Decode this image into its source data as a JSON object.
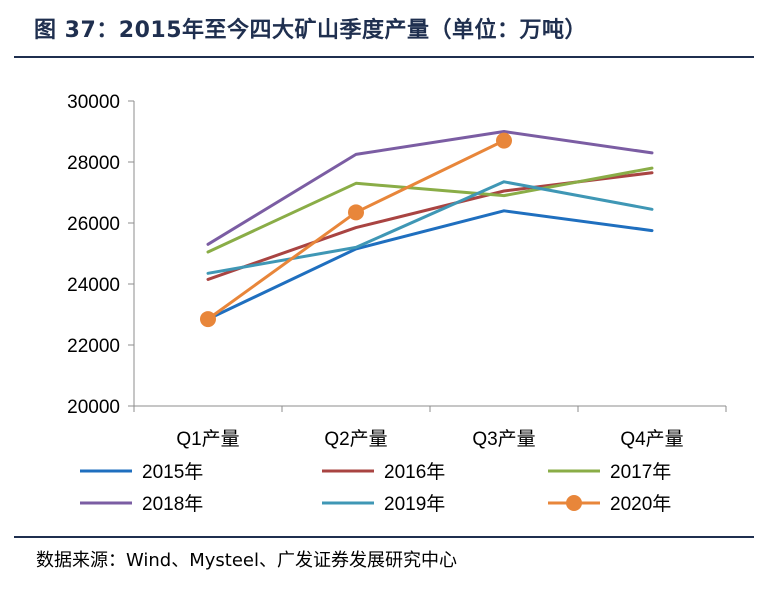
{
  "figure": {
    "title": "图 37：2015年至今四大矿山季度产量（单位：万吨）",
    "source": "数据来源：Wind、Mysteel、广发证券发展研究中心"
  },
  "chart_data": {
    "type": "line",
    "title": "图 37：2015年至今四大矿山季度产量（单位：万吨）",
    "xlabel": "",
    "ylabel": "",
    "categories": [
      "Q1产量",
      "Q2产量",
      "Q3产量",
      "Q4产量"
    ],
    "ylim": [
      20000,
      30000
    ],
    "yticks": [
      20000,
      22000,
      24000,
      26000,
      28000,
      30000
    ],
    "legend_position": "bottom",
    "grid": false,
    "series": [
      {
        "name": "2015年",
        "color": "#1f6fbf",
        "marker": false,
        "values": [
          22850,
          25150,
          26400,
          25750
        ]
      },
      {
        "name": "2016年",
        "color": "#a94442",
        "marker": false,
        "values": [
          24150,
          25850,
          27050,
          27650
        ]
      },
      {
        "name": "2017年",
        "color": "#8aad47",
        "marker": false,
        "values": [
          25050,
          27300,
          26900,
          27800
        ]
      },
      {
        "name": "2018年",
        "color": "#7b5da3",
        "marker": false,
        "values": [
          25300,
          28250,
          29000,
          28300
        ]
      },
      {
        "name": "2019年",
        "color": "#3f97b5",
        "marker": false,
        "values": [
          24350,
          25200,
          27350,
          26450
        ]
      },
      {
        "name": "2020年",
        "color": "#e8863a",
        "marker": true,
        "values": [
          22850,
          26350,
          28700,
          null
        ]
      }
    ]
  }
}
